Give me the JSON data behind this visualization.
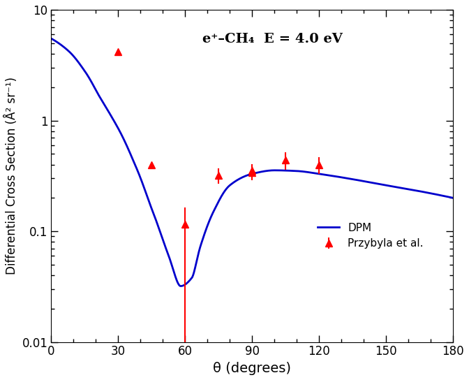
{
  "title": "e⁺–CH₄  E = 4.0 eV",
  "xlabel": "θ (degrees)",
  "ylabel": "Differential Cross Section (Å² sr⁻¹)",
  "xlim": [
    0,
    180
  ],
  "ylim": [
    0.01,
    10
  ],
  "xticks": [
    0,
    30,
    60,
    90,
    120,
    150,
    180
  ],
  "curve_color": "#0000cc",
  "data_color": "#ff0000",
  "exp_x": [
    30,
    45,
    60,
    75,
    90,
    90,
    105,
    120
  ],
  "exp_y": [
    4.2,
    0.4,
    0.115,
    0.32,
    0.34,
    0.355,
    0.44,
    0.4
  ],
  "exp_yerr_lo": [
    0.0,
    0.0,
    0.105,
    0.05,
    0.05,
    0.05,
    0.08,
    0.07
  ],
  "exp_yerr_hi": [
    0.0,
    0.0,
    0.05,
    0.05,
    0.05,
    0.05,
    0.08,
    0.07
  ],
  "legend_dpm": "DPM",
  "legend_exp": "Przybyla et al.",
  "knots_x": [
    0,
    8,
    15,
    22,
    30,
    38,
    45,
    52,
    58,
    63,
    67,
    73,
    80,
    90,
    100,
    110,
    120,
    135,
    150,
    165,
    180
  ],
  "knots_y": [
    5.5,
    4.2,
    2.8,
    1.6,
    0.85,
    0.38,
    0.16,
    0.065,
    0.032,
    0.038,
    0.075,
    0.155,
    0.26,
    0.33,
    0.355,
    0.35,
    0.33,
    0.295,
    0.26,
    0.23,
    0.2
  ]
}
